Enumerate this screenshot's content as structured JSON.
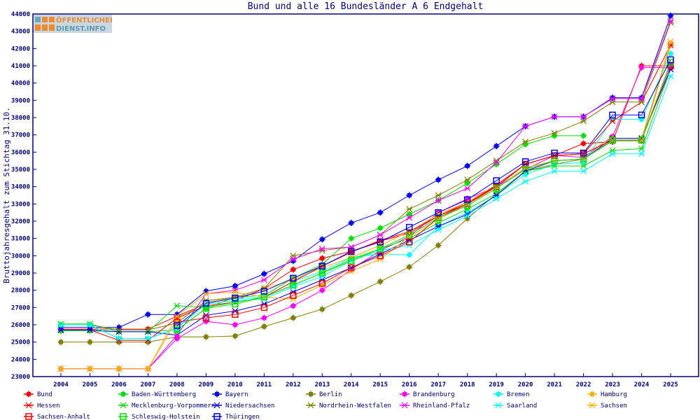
{
  "logo": {
    "line1": "ÖFFENTLICHER",
    "line2": "DIENST.INFO"
  },
  "chart_data": {
    "type": "line",
    "title": "Bund und alle 16 Bundesländer A 6 Endgehalt",
    "xlabel": "",
    "ylabel": "Bruttojahresgehalt zum Stichtag 31.10.",
    "ylim": [
      23000,
      44000
    ],
    "yticks": [
      23000,
      24000,
      25000,
      26000,
      27000,
      28000,
      29000,
      30000,
      31000,
      32000,
      33000,
      34000,
      35000,
      36000,
      37000,
      38000,
      39000,
      40000,
      41000,
      42000,
      43000,
      44000
    ],
    "x": [
      2004,
      2005,
      2006,
      2007,
      2008,
      2009,
      2010,
      2011,
      2012,
      2013,
      2014,
      2015,
      2016,
      2017,
      2018,
      2019,
      2020,
      2021,
      2022,
      2023,
      2024,
      2025
    ],
    "grid": false,
    "legend_position": "bottom",
    "series": [
      {
        "name": "Bund",
        "color": "#ff0000",
        "marker": "filled",
        "values": [
          25750,
          25750,
          25750,
          25750,
          26500,
          27200,
          27400,
          28100,
          29200,
          29850,
          30250,
          30850,
          31300,
          32300,
          33100,
          34000,
          35300,
          35800,
          36500,
          36600,
          41000,
          41000
        ]
      },
      {
        "name": "Baden-Württemberg",
        "color": "#00e000",
        "marker": "filled",
        "values": [
          25650,
          25650,
          25600,
          25600,
          25700,
          26950,
          27600,
          27700,
          28700,
          29500,
          31000,
          31600,
          32400,
          33200,
          34200,
          35300,
          36450,
          36950,
          36950,
          null,
          null,
          null
        ]
      },
      {
        "name": "Bayern",
        "color": "#0000ff",
        "marker": "filled",
        "values": [
          25850,
          25850,
          25850,
          26600,
          26600,
          27950,
          28250,
          28950,
          29700,
          30950,
          31900,
          32500,
          33500,
          34400,
          35200,
          36350,
          37500,
          38050,
          38050,
          39150,
          39150,
          43900
        ]
      },
      {
        "name": "Berlin",
        "color": "#808000",
        "marker": "filled",
        "values": [
          25000,
          25000,
          25000,
          25000,
          25300,
          25300,
          25350,
          25900,
          26400,
          26900,
          27700,
          28500,
          29350,
          30600,
          32150,
          33600,
          34900,
          35300,
          35600,
          36650,
          36650,
          42200
        ]
      },
      {
        "name": "Brandenburg",
        "color": "#ff00ff",
        "marker": "filled",
        "values": [
          23450,
          23450,
          23450,
          23450,
          25200,
          26200,
          26000,
          26400,
          27100,
          28000,
          29200,
          30300,
          31100,
          32500,
          33300,
          34000,
          35000,
          35800,
          35700,
          36900,
          40900,
          40900
        ]
      },
      {
        "name": "Bremen",
        "color": "#00ffff",
        "marker": "filled",
        "values": [
          26000,
          26000,
          25200,
          25200,
          25800,
          27300,
          27500,
          27600,
          28500,
          29100,
          29900,
          30100,
          30050,
          31700,
          32500,
          33500,
          34700,
          35300,
          35400,
          37900,
          37900,
          41700
        ]
      },
      {
        "name": "Hamburg",
        "color": "#ffb000",
        "marker": "filled",
        "values": [
          23450,
          23450,
          23450,
          23450,
          26300,
          27300,
          27600,
          28100,
          28600,
          29300,
          29900,
          30600,
          31400,
          32400,
          33100,
          34100,
          35300,
          35800,
          35900,
          36800,
          36800,
          42200
        ]
      },
      {
        "name": "Hessen",
        "color": "#ff0000",
        "marker": "x",
        "values": [
          25700,
          25700,
          25100,
          25100,
          26400,
          27100,
          27300,
          27600,
          28500,
          29400,
          30200,
          30900,
          31400,
          32300,
          33000,
          34100,
          35300,
          35800,
          35900,
          37800,
          38900,
          42200
        ]
      },
      {
        "name": "Mecklenburg-Vorpommern",
        "color": "#00e000",
        "marker": "x",
        "values": [
          26050,
          26050,
          25600,
          25600,
          27100,
          27000,
          27300,
          27600,
          28300,
          29000,
          29800,
          30400,
          31000,
          31900,
          32700,
          33600,
          34900,
          35200,
          35200,
          36100,
          36200,
          40800
        ]
      },
      {
        "name": "Niedersachsen",
        "color": "#0000ff",
        "marker": "x",
        "values": [
          25700,
          25700,
          25600,
          25600,
          25400,
          26550,
          26800,
          27200,
          27900,
          28600,
          29300,
          30100,
          30900,
          31700,
          32400,
          33500,
          34900,
          35500,
          35600,
          36800,
          36800,
          40800
        ]
      },
      {
        "name": "Nordrhein-Westfalen",
        "color": "#808000",
        "marker": "x",
        "values": [
          26000,
          26000,
          25700,
          25700,
          26100,
          27400,
          27600,
          28100,
          30000,
          30300,
          30500,
          31200,
          32700,
          33500,
          34400,
          35500,
          36600,
          37100,
          37800,
          38900,
          38900,
          43500
        ]
      },
      {
        "name": "Rheinland-Pfalz",
        "color": "#ff00ff",
        "marker": "x",
        "values": [
          23450,
          23450,
          23450,
          23450,
          25400,
          27800,
          28000,
          28600,
          29800,
          30400,
          30500,
          31200,
          32200,
          33200,
          33900,
          35400,
          37500,
          38050,
          38050,
          39100,
          39100,
          43600
        ]
      },
      {
        "name": "Saarland",
        "color": "#00ffff",
        "marker": "x",
        "values": [
          26000,
          26000,
          25200,
          25200,
          25800,
          27200,
          27400,
          27500,
          28200,
          28800,
          29700,
          30300,
          30600,
          31500,
          32300,
          33300,
          34300,
          34900,
          34900,
          35900,
          35900,
          40400
        ]
      },
      {
        "name": "Sachsen",
        "color": "#ffb000",
        "marker": "x",
        "values": [
          23450,
          23450,
          23450,
          23450,
          26500,
          27800,
          27900,
          27600,
          27500,
          28300,
          29100,
          29800,
          31100,
          32100,
          33000,
          33900,
          35100,
          35500,
          35600,
          36700,
          36700,
          42400
        ]
      },
      {
        "name": "Sachsen-Anhalt",
        "color": "#ff0000",
        "marker": "square",
        "values": [
          null,
          null,
          null,
          null,
          26150,
          26400,
          26600,
          27000,
          27700,
          28400,
          29300,
          30000,
          30800,
          32200,
          33000,
          34000,
          35300,
          35800,
          35900,
          36700,
          36700,
          41000
        ]
      },
      {
        "name": "Schleswig-Holstein",
        "color": "#00e000",
        "marker": "square",
        "values": [
          null,
          null,
          null,
          null,
          25700,
          26950,
          27200,
          27600,
          28300,
          29000,
          29700,
          30400,
          31200,
          32200,
          32900,
          33900,
          35000,
          35500,
          35600,
          36700,
          36700,
          41200
        ]
      },
      {
        "name": "Thüringen",
        "color": "#0000ff",
        "marker": "square",
        "values": [
          null,
          null,
          null,
          null,
          25950,
          27250,
          27550,
          27950,
          28700,
          29400,
          30250,
          30800,
          31650,
          32500,
          33250,
          34350,
          35450,
          35950,
          35950,
          38150,
          38150,
          41350
        ]
      }
    ]
  }
}
